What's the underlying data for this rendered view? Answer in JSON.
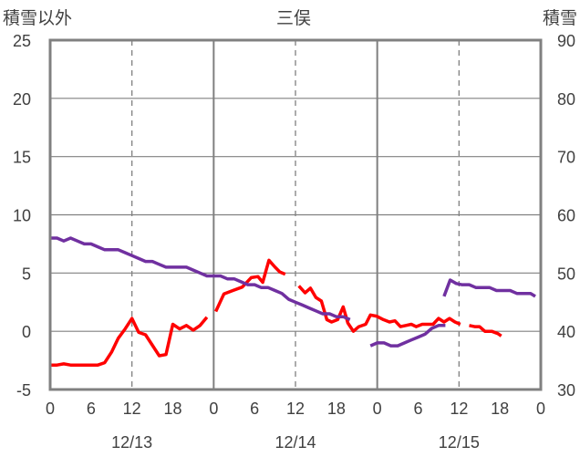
{
  "chart_data": {
    "type": "line",
    "title": "三俣",
    "left_axis_label": "積雪以外",
    "right_axis_label": "積雪",
    "left_ylim": [
      -5,
      25
    ],
    "right_ylim": [
      30,
      90
    ],
    "left_ticks": [
      "25",
      "20",
      "15",
      "10",
      "5",
      "0",
      "-5"
    ],
    "right_ticks": [
      "90",
      "80",
      "70",
      "60",
      "50",
      "40",
      "30"
    ],
    "x_hour_ticks": [
      "0",
      "6",
      "12",
      "18",
      "0",
      "6",
      "12",
      "18",
      "0",
      "6",
      "12",
      "18",
      "0"
    ],
    "date_labels": [
      "12/13",
      "12/14",
      "12/15"
    ],
    "grid": true,
    "colors": {
      "temperature": "#ff0000",
      "snow_depth": "#7030a0",
      "axis": "#808080",
      "grid": "#808080"
    },
    "series": [
      {
        "axis": "left",
        "color": "#ff0000",
        "segments": [
          [
            [
              0,
              -2.9
            ],
            [
              1,
              -2.9
            ],
            [
              2,
              -2.8
            ],
            [
              3,
              -2.9
            ],
            [
              4,
              -2.9
            ],
            [
              5,
              -2.9
            ],
            [
              6,
              -2.9
            ],
            [
              7,
              -2.9
            ],
            [
              8,
              -2.7
            ],
            [
              9,
              -1.8
            ],
            [
              10,
              -0.6
            ],
            [
              11,
              0.2
            ],
            [
              12,
              1.1
            ],
            [
              13,
              -0.1
            ],
            [
              14,
              -0.3
            ],
            [
              15,
              -1.2
            ],
            [
              16,
              -2.1
            ],
            [
              17,
              -2.0
            ],
            [
              18,
              0.6
            ],
            [
              19,
              0.2
            ],
            [
              20,
              0.5
            ],
            [
              21,
              0.1
            ],
            [
              22,
              0.5
            ],
            [
              23,
              1.2
            ]
          ],
          [
            [
              24.3,
              1.7
            ],
            [
              25.5,
              3.2
            ],
            [
              26.8,
              3.5
            ],
            [
              28.2,
              3.8
            ],
            [
              29.5,
              4.6
            ],
            [
              30.5,
              4.7
            ],
            [
              31.2,
              4.2
            ],
            [
              32.1,
              6.1
            ],
            [
              33.0,
              5.5
            ],
            [
              33.7,
              5.1
            ],
            [
              34.5,
              4.9
            ]
          ],
          [
            [
              36.5,
              3.9
            ],
            [
              37.4,
              3.3
            ],
            [
              38.2,
              3.7
            ],
            [
              39.0,
              2.9
            ],
            [
              39.8,
              2.6
            ],
            [
              40.6,
              1.0
            ],
            [
              41.3,
              0.8
            ],
            [
              42.2,
              1.0
            ],
            [
              43.0,
              2.1
            ],
            [
              43.7,
              0.7
            ],
            [
              44.5,
              0.0
            ],
            [
              45.3,
              0.4
            ],
            [
              46.3,
              0.6
            ],
            [
              47.0,
              1.4
            ],
            [
              47.9,
              1.3
            ],
            [
              48.9,
              1.0
            ],
            [
              49.8,
              0.8
            ],
            [
              50.6,
              0.9
            ],
            [
              51.4,
              0.4
            ],
            [
              52.2,
              0.5
            ],
            [
              53.0,
              0.6
            ],
            [
              53.7,
              0.4
            ],
            [
              54.6,
              0.6
            ],
            [
              55.4,
              0.6
            ],
            [
              56.2,
              0.6
            ],
            [
              57.0,
              1.1
            ],
            [
              57.8,
              0.8
            ],
            [
              58.6,
              1.1
            ],
            [
              59.4,
              0.8
            ],
            [
              60.2,
              0.6
            ]
          ],
          [
            [
              61.5,
              0.5
            ],
            [
              62.3,
              0.4
            ],
            [
              63.0,
              0.4
            ],
            [
              63.8,
              0.0
            ],
            [
              64.8,
              0.0
            ],
            [
              65.7,
              -0.2
            ],
            [
              66.2,
              -0.4
            ]
          ]
        ]
      },
      {
        "axis": "right",
        "color": "#7030a0",
        "segments": [
          [
            [
              0,
              56
            ],
            [
              1,
              56
            ],
            [
              2,
              55.5
            ],
            [
              3,
              56
            ],
            [
              4,
              55.5
            ],
            [
              5,
              55
            ],
            [
              6,
              55
            ],
            [
              7,
              54.5
            ],
            [
              8,
              54
            ],
            [
              9,
              54
            ],
            [
              10,
              54
            ],
            [
              11,
              53.5
            ],
            [
              12,
              53
            ],
            [
              13,
              52.5
            ],
            [
              14,
              52
            ],
            [
              15,
              52
            ],
            [
              16,
              51.5
            ],
            [
              17,
              51
            ],
            [
              18,
              51
            ],
            [
              19,
              51
            ],
            [
              20,
              51
            ],
            [
              21,
              50.5
            ],
            [
              22,
              50
            ],
            [
              23,
              49.5
            ],
            [
              24,
              49.5
            ],
            [
              25,
              49.5
            ],
            [
              26,
              49
            ],
            [
              27,
              49
            ],
            [
              28,
              48.5
            ],
            [
              29,
              48
            ],
            [
              30,
              48
            ],
            [
              31,
              47.5
            ],
            [
              32,
              47.5
            ],
            [
              33,
              47
            ],
            [
              34,
              46.5
            ],
            [
              35,
              45.5
            ],
            [
              36,
              45
            ],
            [
              37,
              44.5
            ],
            [
              38,
              44
            ],
            [
              39,
              43.5
            ],
            [
              40,
              43
            ],
            [
              41,
              43
            ],
            [
              42,
              42.5
            ],
            [
              43,
              42.5
            ],
            [
              44,
              42
            ]
          ],
          [
            [
              47,
              37.5
            ],
            [
              48,
              38
            ],
            [
              49,
              38
            ],
            [
              50,
              37.5
            ],
            [
              51,
              37.5
            ],
            [
              52,
              38
            ],
            [
              53,
              38.5
            ],
            [
              54,
              39
            ],
            [
              55,
              39.5
            ],
            [
              56,
              40.5
            ],
            [
              57,
              41
            ],
            [
              58,
              41
            ]
          ],
          [
            [
              57.8,
              46
            ],
            [
              58.7,
              48.8
            ],
            [
              59.6,
              48.2
            ],
            [
              60.4,
              48
            ],
            [
              61.5,
              48
            ],
            [
              62.5,
              47.5
            ],
            [
              63.5,
              47.5
            ],
            [
              64.5,
              47.5
            ],
            [
              65.5,
              47
            ],
            [
              66.5,
              47
            ],
            [
              67.5,
              47
            ],
            [
              68.5,
              46.5
            ],
            [
              69.5,
              46.5
            ],
            [
              70.5,
              46.5
            ],
            [
              71.2,
              46
            ]
          ]
        ]
      }
    ]
  }
}
